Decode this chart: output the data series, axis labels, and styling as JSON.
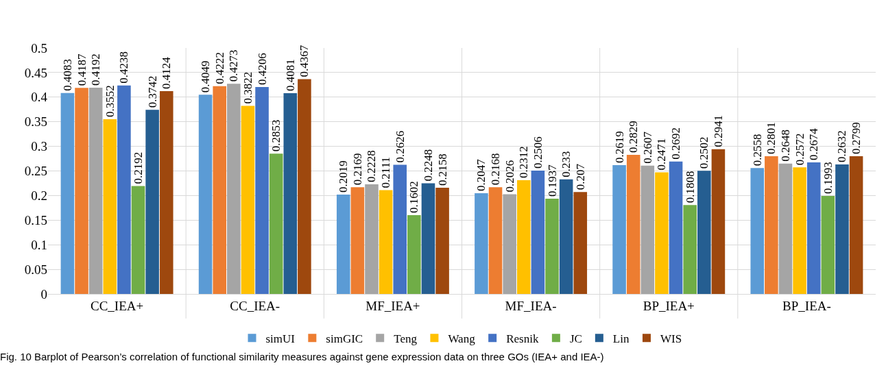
{
  "chart_data": {
    "type": "bar",
    "categories": [
      "CC_IEA+",
      "CC_IEA-",
      "MF_IEA+",
      "MF_IEA-",
      "BP_IEA+",
      "BP_IEA-"
    ],
    "series": [
      {
        "name": "simUI",
        "color": "#5b9bd5",
        "values": [
          0.4083,
          0.4049,
          0.2019,
          0.2047,
          0.2619,
          0.2558
        ]
      },
      {
        "name": "simGIC",
        "color": "#ed7d31",
        "values": [
          0.4187,
          0.4222,
          0.2169,
          0.2168,
          0.2829,
          0.2801
        ]
      },
      {
        "name": "Teng",
        "color": "#a5a5a5",
        "values": [
          0.4192,
          0.4273,
          0.2228,
          0.2026,
          0.2607,
          0.2648
        ]
      },
      {
        "name": "Wang",
        "color": "#ffc000",
        "values": [
          0.3552,
          0.3822,
          0.2111,
          0.2312,
          0.2471,
          0.2572
        ]
      },
      {
        "name": "Resnik",
        "color": "#4472c4",
        "values": [
          0.4238,
          0.4206,
          0.2626,
          0.2506,
          0.2692,
          0.2674
        ]
      },
      {
        "name": "JC",
        "color": "#70ad47",
        "values": [
          0.2192,
          0.2853,
          0.1602,
          0.1937,
          0.1808,
          0.1993
        ]
      },
      {
        "name": "Lin",
        "color": "#255e91",
        "values": [
          0.3742,
          0.4081,
          0.2248,
          0.233,
          0.2502,
          0.2632
        ]
      },
      {
        "name": "WIS",
        "color": "#9e480e",
        "values": [
          0.4124,
          0.4367,
          0.2158,
          0.207,
          0.2941,
          0.2799
        ]
      }
    ],
    "ylim": [
      0,
      0.5
    ],
    "yticks": [
      0,
      0.05,
      0.1,
      0.15,
      0.2,
      0.25,
      0.3,
      0.35,
      0.4,
      0.45,
      0.5
    ],
    "grid": "y",
    "legend": "bottom",
    "data_labels": true,
    "annotations": [
      "Fig. 10 Barplot of Pearson’s correlation of functional similarity measures against gene expression data on three GOs (IEA+ and IEA-)"
    ]
  }
}
